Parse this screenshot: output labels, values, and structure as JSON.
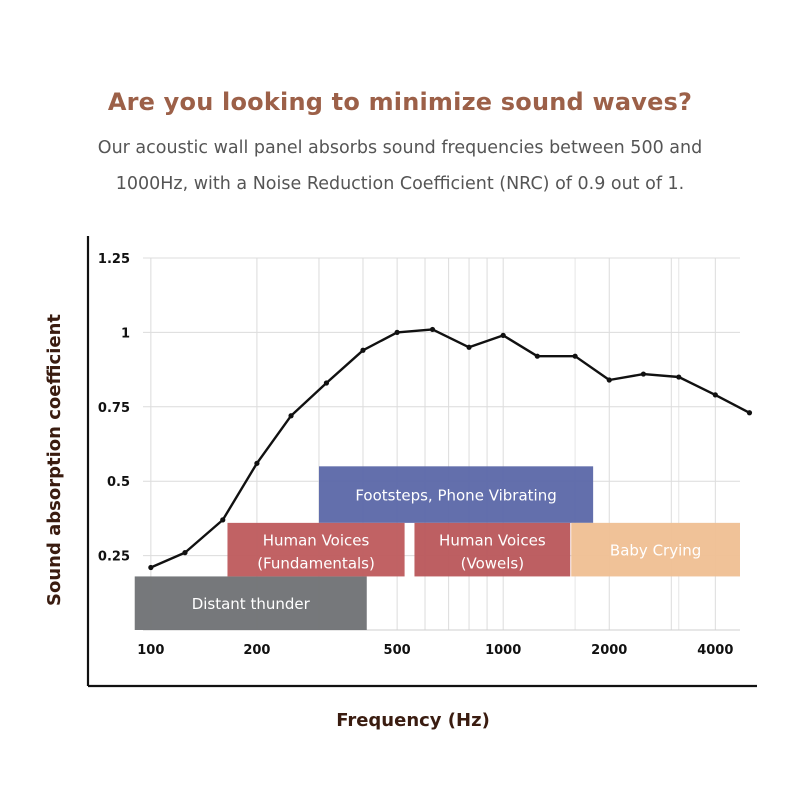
{
  "header": {
    "headline": "Are you looking to minimize sound waves?",
    "subtext_line1": "Our acoustic wall panel absorbs sound frequencies between 500 and",
    "subtext_line2": "1000Hz, with a Noise Reduction Coefficient (NRC) of 0.9 out of 1."
  },
  "colors": {
    "headline": "#9c6048",
    "line": "#111111",
    "axis_title": "#3a1c10"
  },
  "chart_data": {
    "type": "line",
    "title": "",
    "xlabel": "Frequency (Hz)",
    "ylabel": "Sound absorption coefficient",
    "x_scale": "log",
    "xlim": [
      95,
      4700
    ],
    "ylim": [
      0,
      1.25
    ],
    "grid": true,
    "x_ticks": [
      {
        "value": 100,
        "label": "100"
      },
      {
        "value": 200,
        "label": "200"
      },
      {
        "value": 500,
        "label": "500"
      },
      {
        "value": 1000,
        "label": "1000"
      },
      {
        "value": 2000,
        "label": "2000"
      },
      {
        "value": 4000,
        "label": "4000"
      }
    ],
    "y_ticks": [
      {
        "value": 0.25,
        "label": "0.25"
      },
      {
        "value": 0.5,
        "label": "0.5"
      },
      {
        "value": 0.75,
        "label": "0.75"
      },
      {
        "value": 1,
        "label": "1"
      },
      {
        "value": 1.25,
        "label": "1.25"
      }
    ],
    "series": [
      {
        "x": [
          100,
          125,
          160,
          200,
          250,
          315,
          400,
          500,
          630,
          800,
          1000,
          1250,
          1600,
          2000,
          2500,
          3150,
          4000,
          5000
        ],
        "y": [
          0.21,
          0.26,
          0.37,
          0.56,
          0.72,
          0.83,
          0.94,
          1.0,
          1.01,
          0.95,
          0.99,
          0.92,
          0.92,
          0.84,
          0.86,
          0.85,
          0.79,
          0.73
        ]
      }
    ],
    "bands": [
      {
        "label": "Distant thunder",
        "x_start": 90,
        "x_end": 410,
        "y_top": 0.18,
        "y_bottom": 0.0,
        "color": "#6f7174"
      },
      {
        "label": "Footsteps, Phone Vibrating",
        "x_start": 300,
        "x_end": 1800,
        "y_top": 0.55,
        "y_bottom": 0.36,
        "color": "#5b67a8"
      },
      {
        "label_line1": "Human Voices",
        "label_line2": "(Fundamentals)",
        "x_start": 165,
        "x_end": 525,
        "y_top": 0.36,
        "y_bottom": 0.18,
        "color": "#be5a5c"
      },
      {
        "label_line1": "Human Voices",
        "label_line2": "(Vowels)",
        "x_start": 560,
        "x_end": 1550,
        "y_top": 0.36,
        "y_bottom": 0.18,
        "color": "#b9565a"
      },
      {
        "label": "Baby Crying",
        "x_start": 1560,
        "x_end": 4700,
        "y_top": 0.36,
        "y_bottom": 0.18,
        "color": "#efbf92"
      }
    ]
  }
}
